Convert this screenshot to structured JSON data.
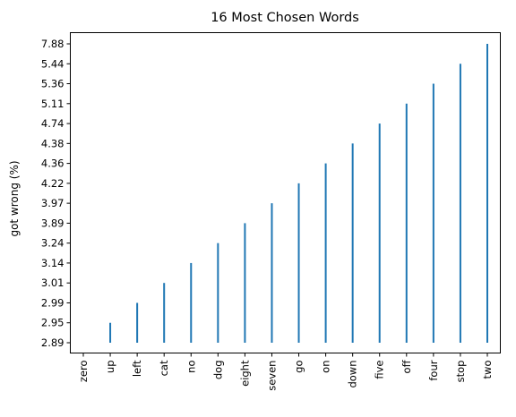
{
  "chart_data": {
    "type": "bar",
    "title": "16 Most Chosen Words",
    "xlabel": "",
    "ylabel": "got wrong (%)",
    "categories": [
      "zero",
      "up",
      "left",
      "cat",
      "no",
      "dog",
      "eight",
      "seven",
      "go",
      "on",
      "down",
      "five",
      "off",
      "four",
      "stop",
      "two"
    ],
    "values": [
      2.89,
      2.95,
      2.99,
      3.01,
      3.14,
      3.24,
      3.89,
      3.97,
      4.22,
      4.36,
      4.38,
      4.74,
      5.11,
      5.36,
      5.44,
      7.88
    ],
    "y_tick_labels": [
      "2.89",
      "2.95",
      "2.99",
      "3.01",
      "3.14",
      "3.24",
      "3.89",
      "3.97",
      "4.22",
      "4.36",
      "4.38",
      "4.74",
      "5.11",
      "5.36",
      "5.44",
      "7.88"
    ],
    "y_scale": "categorical (each value drawn at its own rank)",
    "bar_color": "#1f77b4",
    "grid": false,
    "legend": "none"
  }
}
